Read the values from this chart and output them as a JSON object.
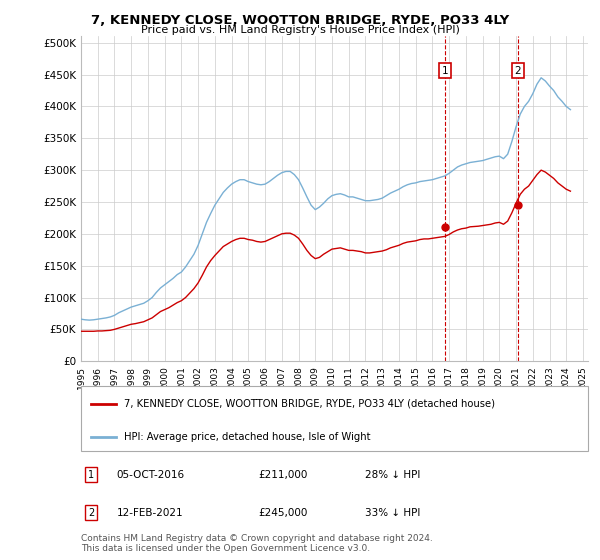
{
  "title": "7, KENNEDY CLOSE, WOOTTON BRIDGE, RYDE, PO33 4LY",
  "subtitle": "Price paid vs. HM Land Registry's House Price Index (HPI)",
  "yticks": [
    0,
    50000,
    100000,
    150000,
    200000,
    250000,
    300000,
    350000,
    400000,
    450000,
    500000
  ],
  "ytick_labels": [
    "£0",
    "£50K",
    "£100K",
    "£150K",
    "£200K",
    "£250K",
    "£300K",
    "£350K",
    "£400K",
    "£450K",
    "£500K"
  ],
  "ylim": [
    0,
    510000
  ],
  "xlim": [
    1995,
    2025.3
  ],
  "hpi_color": "#7ab0d4",
  "price_color": "#cc0000",
  "annotation_color": "#cc0000",
  "background_color": "#ffffff",
  "grid_color": "#cccccc",
  "transaction1": {
    "date": "05-OCT-2016",
    "price": 211000,
    "price_str": "£211,000",
    "pct": "28%",
    "label": "1",
    "year": 2016.75
  },
  "transaction2": {
    "date": "12-FEB-2021",
    "price": 245000,
    "price_str": "£245,000",
    "pct": "33%",
    "label": "2",
    "year": 2021.1
  },
  "legend_label_price": "7, KENNEDY CLOSE, WOOTTON BRIDGE, RYDE, PO33 4LY (detached house)",
  "legend_label_hpi": "HPI: Average price, detached house, Isle of Wight",
  "footnote": "Contains HM Land Registry data © Crown copyright and database right 2024.\nThis data is licensed under the Open Government Licence v3.0.",
  "hpi_data": {
    "years": [
      1995.0,
      1995.25,
      1995.5,
      1995.75,
      1996.0,
      1996.25,
      1996.5,
      1996.75,
      1997.0,
      1997.25,
      1997.5,
      1997.75,
      1998.0,
      1998.25,
      1998.5,
      1998.75,
      1999.0,
      1999.25,
      1999.5,
      1999.75,
      2000.0,
      2000.25,
      2000.5,
      2000.75,
      2001.0,
      2001.25,
      2001.5,
      2001.75,
      2002.0,
      2002.25,
      2002.5,
      2002.75,
      2003.0,
      2003.25,
      2003.5,
      2003.75,
      2004.0,
      2004.25,
      2004.5,
      2004.75,
      2005.0,
      2005.25,
      2005.5,
      2005.75,
      2006.0,
      2006.25,
      2006.5,
      2006.75,
      2007.0,
      2007.25,
      2007.5,
      2007.75,
      2008.0,
      2008.25,
      2008.5,
      2008.75,
      2009.0,
      2009.25,
      2009.5,
      2009.75,
      2010.0,
      2010.25,
      2010.5,
      2010.75,
      2011.0,
      2011.25,
      2011.5,
      2011.75,
      2012.0,
      2012.25,
      2012.5,
      2012.75,
      2013.0,
      2013.25,
      2013.5,
      2013.75,
      2014.0,
      2014.25,
      2014.5,
      2014.75,
      2015.0,
      2015.25,
      2015.5,
      2015.75,
      2016.0,
      2016.25,
      2016.5,
      2016.75,
      2017.0,
      2017.25,
      2017.5,
      2017.75,
      2018.0,
      2018.25,
      2018.5,
      2018.75,
      2019.0,
      2019.25,
      2019.5,
      2019.75,
      2020.0,
      2020.25,
      2020.5,
      2020.75,
      2021.0,
      2021.25,
      2021.5,
      2021.75,
      2022.0,
      2022.25,
      2022.5,
      2022.75,
      2023.0,
      2023.25,
      2023.5,
      2023.75,
      2024.0,
      2024.25
    ],
    "values": [
      66000,
      65000,
      64500,
      65000,
      66000,
      67000,
      68000,
      69500,
      72000,
      76000,
      79000,
      82000,
      85000,
      87000,
      89000,
      91000,
      95000,
      100000,
      108000,
      115000,
      120000,
      125000,
      130000,
      136000,
      140000,
      148000,
      158000,
      168000,
      182000,
      200000,
      218000,
      232000,
      245000,
      255000,
      265000,
      272000,
      278000,
      282000,
      285000,
      285000,
      282000,
      280000,
      278000,
      277000,
      278000,
      282000,
      287000,
      292000,
      296000,
      298000,
      298000,
      293000,
      285000,
      272000,
      258000,
      245000,
      238000,
      242000,
      248000,
      255000,
      260000,
      262000,
      263000,
      261000,
      258000,
      258000,
      256000,
      254000,
      252000,
      252000,
      253000,
      254000,
      256000,
      260000,
      264000,
      267000,
      270000,
      274000,
      277000,
      279000,
      280000,
      282000,
      283000,
      284000,
      285000,
      287000,
      289000,
      291000,
      295000,
      300000,
      305000,
      308000,
      310000,
      312000,
      313000,
      314000,
      315000,
      317000,
      319000,
      321000,
      322000,
      318000,
      325000,
      345000,
      368000,
      388000,
      400000,
      408000,
      420000,
      435000,
      445000,
      440000,
      432000,
      425000,
      415000,
      408000,
      400000,
      395000
    ]
  },
  "price_data": {
    "years": [
      1995.0,
      1995.25,
      1995.5,
      1995.75,
      1996.0,
      1996.25,
      1996.5,
      1996.75,
      1997.0,
      1997.25,
      1997.5,
      1997.75,
      1998.0,
      1998.25,
      1998.5,
      1998.75,
      1999.0,
      1999.25,
      1999.5,
      1999.75,
      2000.0,
      2000.25,
      2000.5,
      2000.75,
      2001.0,
      2001.25,
      2001.5,
      2001.75,
      2002.0,
      2002.25,
      2002.5,
      2002.75,
      2003.0,
      2003.25,
      2003.5,
      2003.75,
      2004.0,
      2004.25,
      2004.5,
      2004.75,
      2005.0,
      2005.25,
      2005.5,
      2005.75,
      2006.0,
      2006.25,
      2006.5,
      2006.75,
      2007.0,
      2007.25,
      2007.5,
      2007.75,
      2008.0,
      2008.25,
      2008.5,
      2008.75,
      2009.0,
      2009.25,
      2009.5,
      2009.75,
      2010.0,
      2010.25,
      2010.5,
      2010.75,
      2011.0,
      2011.25,
      2011.5,
      2011.75,
      2012.0,
      2012.25,
      2012.5,
      2012.75,
      2013.0,
      2013.25,
      2013.5,
      2013.75,
      2014.0,
      2014.25,
      2014.5,
      2014.75,
      2015.0,
      2015.25,
      2015.5,
      2015.75,
      2016.0,
      2016.25,
      2016.5,
      2016.75,
      2017.0,
      2017.25,
      2017.5,
      2017.75,
      2018.0,
      2018.25,
      2018.5,
      2018.75,
      2019.0,
      2019.25,
      2019.5,
      2019.75,
      2020.0,
      2020.25,
      2020.5,
      2020.75,
      2021.0,
      2021.25,
      2021.5,
      2021.75,
      2022.0,
      2022.25,
      2022.5,
      2022.75,
      2023.0,
      2023.25,
      2023.5,
      2023.75,
      2024.0,
      2024.25
    ],
    "values": [
      47000,
      47000,
      47000,
      47000,
      47500,
      47500,
      48000,
      48500,
      50000,
      52000,
      54000,
      56000,
      58000,
      59000,
      60500,
      62000,
      65000,
      68000,
      73000,
      78000,
      81000,
      84000,
      88000,
      92000,
      95000,
      100000,
      107000,
      114000,
      123000,
      135000,
      148000,
      158000,
      166000,
      173000,
      180000,
      184000,
      188000,
      191000,
      193000,
      193000,
      191000,
      190000,
      188000,
      187000,
      188000,
      191000,
      194000,
      197000,
      200000,
      201000,
      201000,
      198000,
      193000,
      184000,
      174000,
      166000,
      161000,
      163000,
      168000,
      172000,
      176000,
      177000,
      178000,
      176000,
      174000,
      174000,
      173000,
      172000,
      170000,
      170000,
      171000,
      172000,
      173000,
      175000,
      178000,
      180000,
      182000,
      185000,
      187000,
      188000,
      189000,
      191000,
      192000,
      192000,
      193000,
      194000,
      195000,
      196000,
      199000,
      203000,
      206000,
      208000,
      209000,
      211000,
      211500,
      212000,
      213000,
      214000,
      215000,
      217000,
      218000,
      215000,
      220000,
      233000,
      248000,
      262000,
      270000,
      275000,
      284000,
      293000,
      300000,
      297000,
      292000,
      287000,
      280000,
      275000,
      270000,
      267000
    ]
  }
}
